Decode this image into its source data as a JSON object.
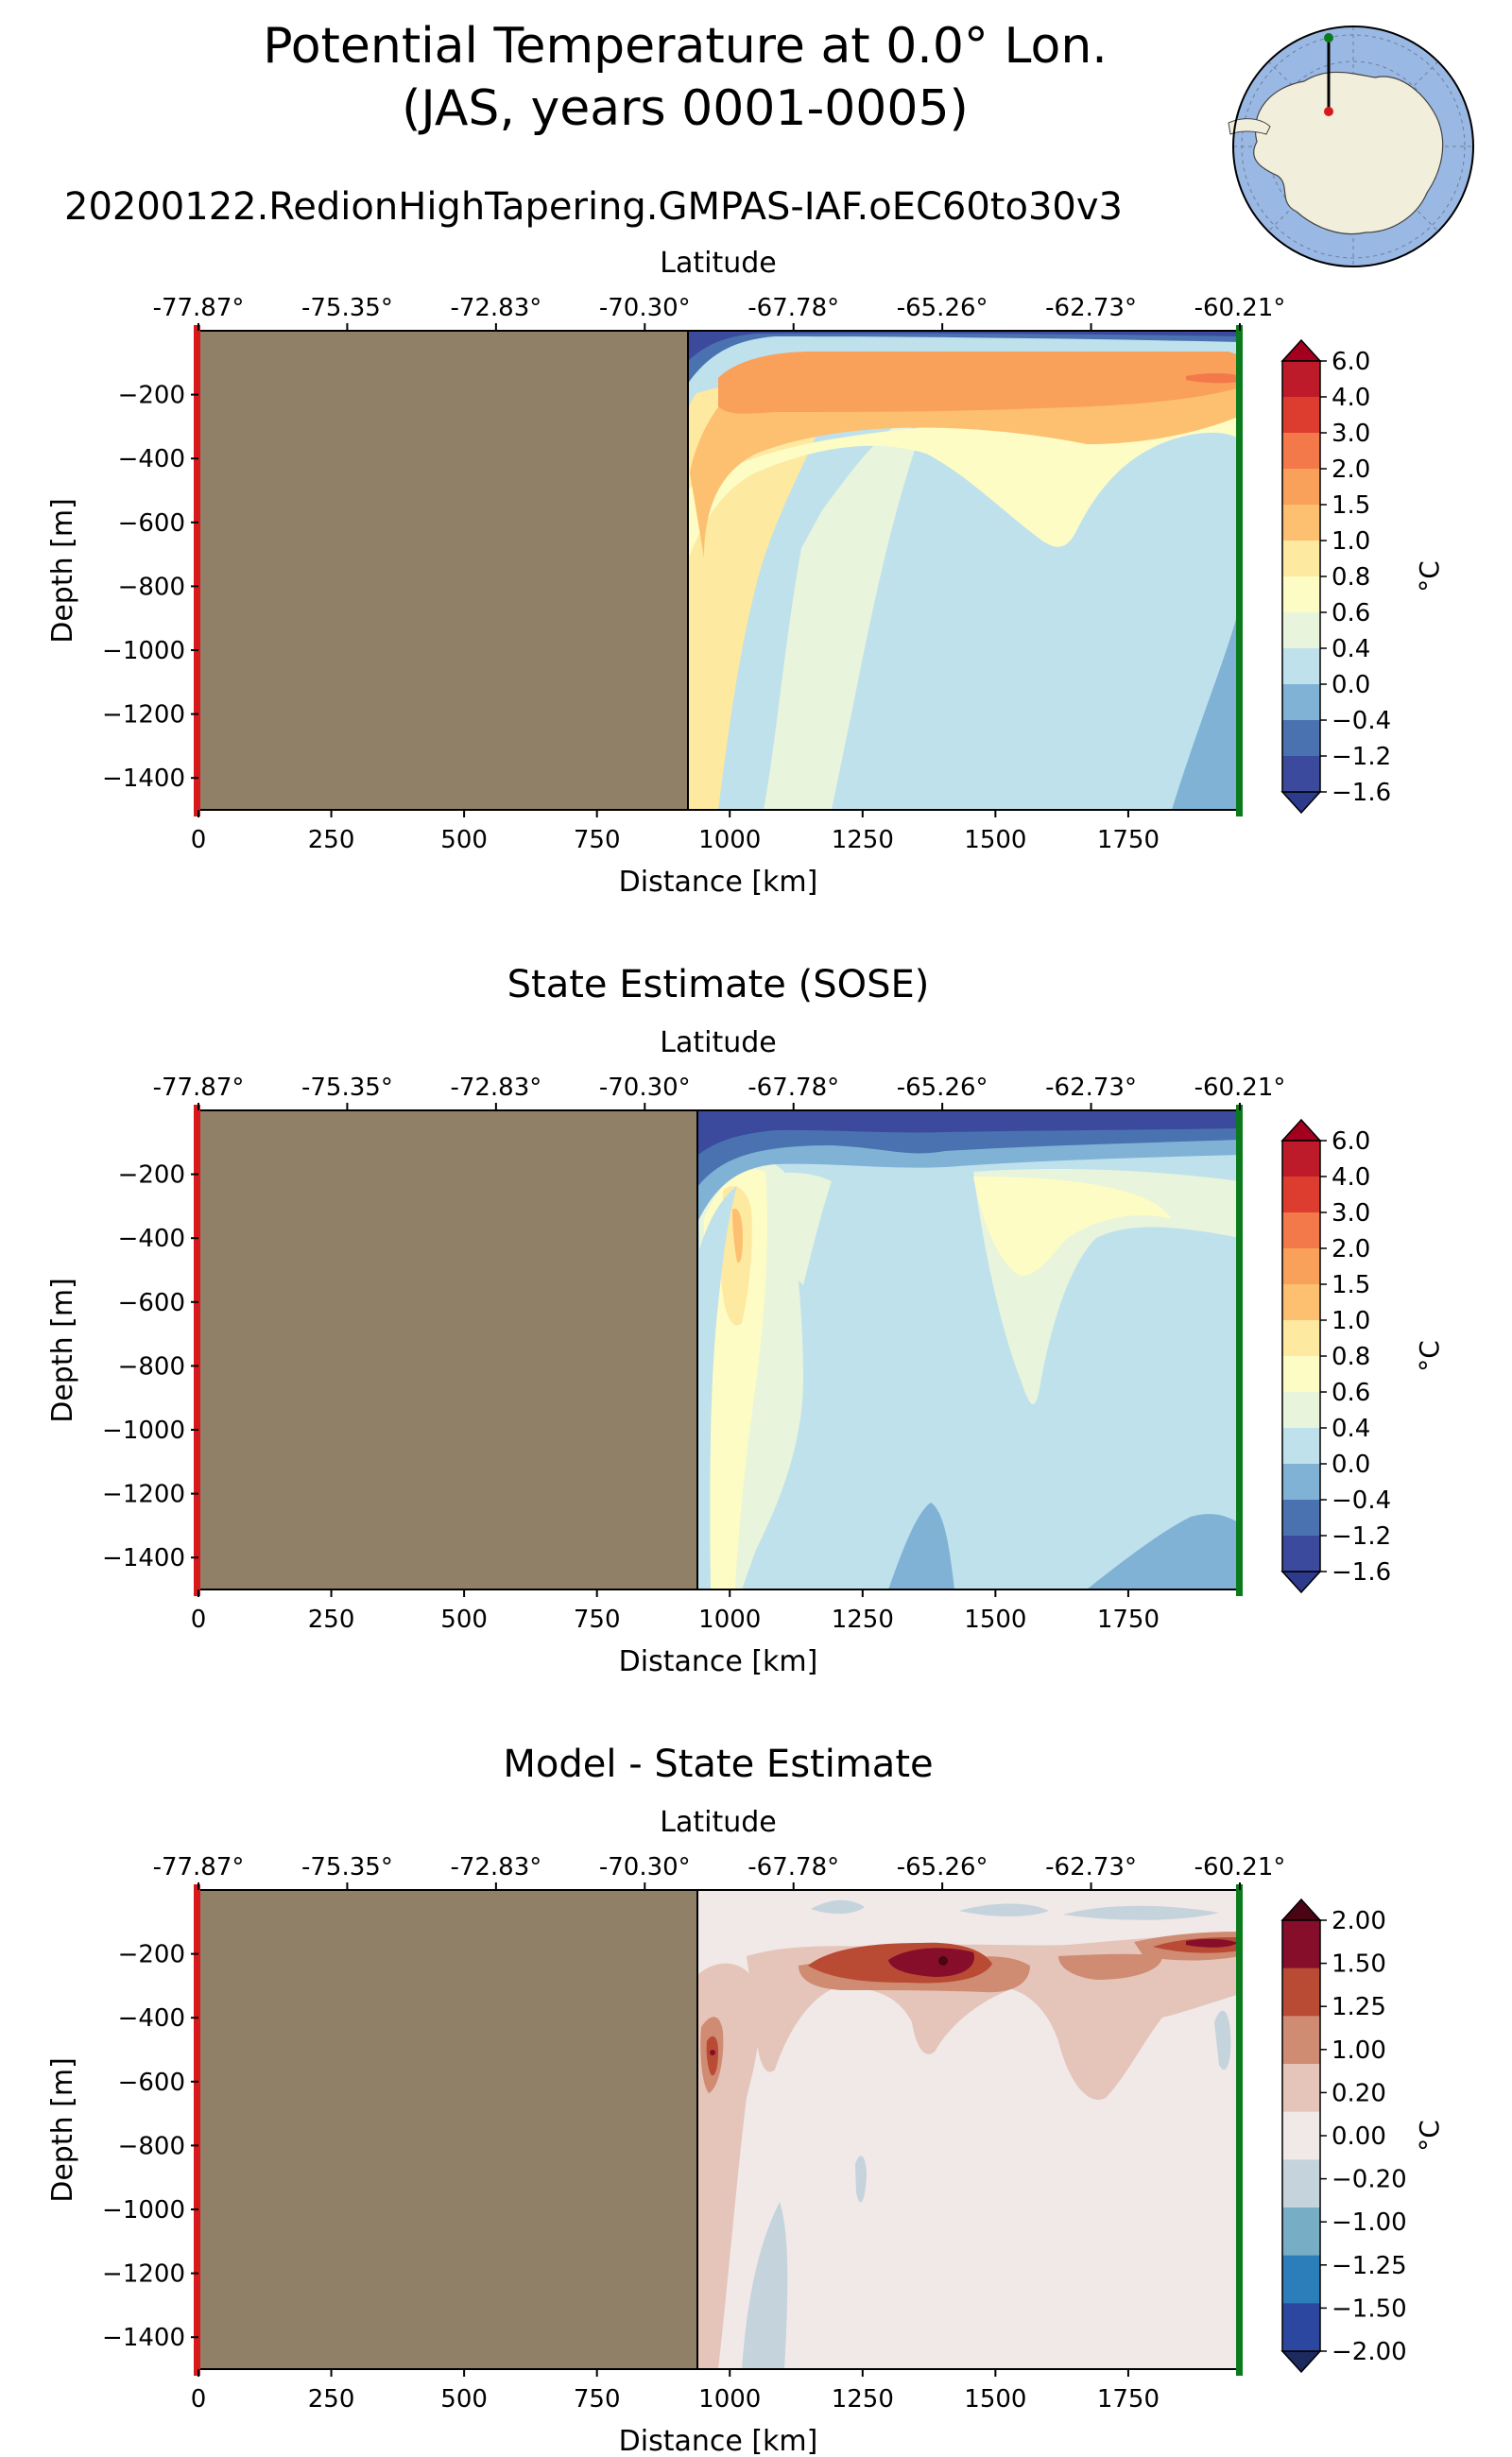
{
  "figure": {
    "title_line1": "Potential Temperature at 0.0° Lon.",
    "title_line2": "(JAS, years 0001-0005)",
    "run_name": "20200122.RedionHighTapering.GMPAS-IAF.oEC60to30v3"
  },
  "chart_data": [
    {
      "type": "contourf",
      "title": "",
      "xlabel": "Distance [km]",
      "ylabel": "Depth [m]",
      "top_xlabel": "Latitude",
      "colorbar_label": "°C",
      "xlim": [
        0,
        1960
      ],
      "ylim": [
        -1500,
        0
      ],
      "land_end_km": 930,
      "x_ticks": [
        "0",
        "250",
        "500",
        "750",
        "1000",
        "1250",
        "1500",
        "1750"
      ],
      "y_ticks": [
        "−200",
        "−400",
        "−600",
        "−800",
        "−1000",
        "−1200",
        "−1400"
      ],
      "lat_ticks": [
        "-77.87°",
        "-75.35°",
        "-72.83°",
        "-70.30°",
        "-67.78°",
        "-65.26°",
        "-62.73°",
        "-60.21°"
      ],
      "colorbar_ticks": [
        "6.0",
        "4.0",
        "3.0",
        "2.0",
        "1.5",
        "1.0",
        "0.8",
        "0.6",
        "0.4",
        "0.0",
        "−0.4",
        "−1.2",
        "−1.6"
      ]
    },
    {
      "type": "contourf",
      "title": "State Estimate (SOSE)",
      "xlabel": "Distance [km]",
      "ylabel": "Depth [m]",
      "top_xlabel": "Latitude",
      "colorbar_label": "°C",
      "xlim": [
        0,
        1960
      ],
      "ylim": [
        -1500,
        0
      ],
      "land_end_km": 945,
      "x_ticks": [
        "0",
        "250",
        "500",
        "750",
        "1000",
        "1250",
        "1500",
        "1750"
      ],
      "y_ticks": [
        "−200",
        "−400",
        "−600",
        "−800",
        "−1000",
        "−1200",
        "−1400"
      ],
      "lat_ticks": [
        "-77.87°",
        "-75.35°",
        "-72.83°",
        "-70.30°",
        "-67.78°",
        "-65.26°",
        "-62.73°",
        "-60.21°"
      ],
      "colorbar_ticks": [
        "6.0",
        "4.0",
        "3.0",
        "2.0",
        "1.5",
        "1.0",
        "0.8",
        "0.6",
        "0.4",
        "0.0",
        "−0.4",
        "−1.2",
        "−1.6"
      ]
    },
    {
      "type": "contourf",
      "title": "Model - State Estimate",
      "xlabel": "Distance [km]",
      "ylabel": "Depth [m]",
      "top_xlabel": "Latitude",
      "colorbar_label": "°C",
      "xlim": [
        0,
        1960
      ],
      "ylim": [
        -1500,
        0
      ],
      "land_end_km": 945,
      "x_ticks": [
        "0",
        "250",
        "500",
        "750",
        "1000",
        "1250",
        "1500",
        "1750"
      ],
      "y_ticks": [
        "−200",
        "−400",
        "−600",
        "−800",
        "−1000",
        "−1200",
        "−1400"
      ],
      "lat_ticks": [
        "-77.87°",
        "-75.35°",
        "-72.83°",
        "-70.30°",
        "-67.78°",
        "-65.26°",
        "-62.73°",
        "-60.21°"
      ],
      "colorbar_ticks": [
        "2.00",
        "1.50",
        "1.25",
        "1.00",
        "0.20",
        "0.00",
        "−0.20",
        "−1.00",
        "−1.25",
        "−1.50",
        "−2.00"
      ]
    }
  ],
  "colors": {
    "land": "#8f8067",
    "temperature_levels": [
      "#3b4a9c",
      "#4a72b0",
      "#7fb2d5",
      "#bfe1ec",
      "#e8f4dc",
      "#fdfcc4",
      "#fde9a0",
      "#fdbf70",
      "#f9a05a",
      "#f3794a",
      "#dc3d2f",
      "#bd1b2a"
    ],
    "temperature_extend_low": "#2c3b8c",
    "temperature_extend_high": "#a3001f",
    "difference_levels": [
      "#2c47a0",
      "#2c7ebb",
      "#78adc6",
      "#c5d3dc",
      "#f0e9e8",
      "#e5c5ba",
      "#cf8c72",
      "#b94a34",
      "#860e2a"
    ],
    "difference_extend_low": "#1d2a5e",
    "difference_extend_high": "#4a0515",
    "start_marker": "#d7191c",
    "end_marker": "#0b7a1c",
    "map_ocean": "#9ab8e4",
    "map_land": "#f1eedb"
  }
}
